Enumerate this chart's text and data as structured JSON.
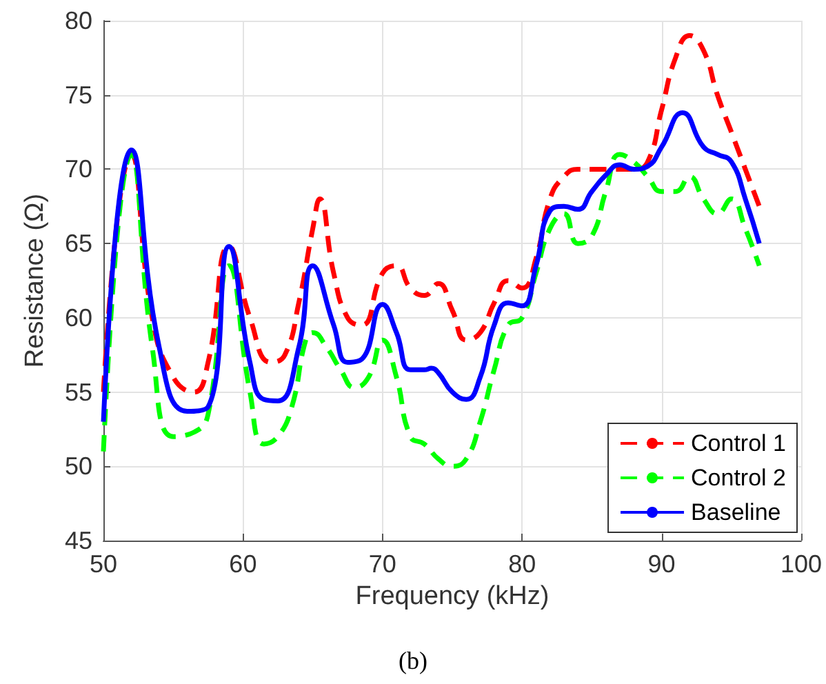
{
  "chart_data": {
    "type": "line",
    "xlabel": "Frequency (kHz)",
    "ylabel": "Resistance (Ω)",
    "annotations": [
      "(b)"
    ],
    "xlim": [
      50,
      100
    ],
    "xticks": [
      50,
      60,
      70,
      80,
      90,
      100
    ],
    "ylim": [
      45,
      80
    ],
    "yticks": [
      45,
      50,
      55,
      60,
      65,
      70,
      75,
      80
    ],
    "grid": true,
    "legend": "bottom right",
    "marker": "none",
    "series": [
      {
        "name": "Control 1",
        "color": "#ff0000",
        "line_style": "dashed",
        "x": [
          50,
          52,
          53.5,
          55,
          56.5,
          57.5,
          59,
          60.5,
          62,
          63,
          64,
          65,
          65.5,
          66.5,
          67.5,
          68.5,
          70,
          71,
          72,
          73,
          74,
          75,
          76,
          77,
          78,
          79,
          80,
          81,
          82,
          83,
          84,
          85,
          86,
          87,
          88,
          89,
          90,
          91,
          92,
          93,
          94,
          95,
          96,
          97
        ],
        "values": [
          55,
          71,
          60,
          56,
          55,
          57,
          64.8,
          60,
          57,
          57.5,
          61,
          66,
          68,
          63,
          60,
          59.5,
          63,
          63.5,
          62,
          61.5,
          62.3,
          60.5,
          58.5,
          59,
          61,
          62.5,
          62,
          64,
          68,
          69.5,
          70,
          70,
          70,
          70,
          70,
          70.5,
          74,
          77.5,
          79,
          78,
          75,
          72.5,
          70,
          67.5
        ]
      },
      {
        "name": "Control 2",
        "color": "#00ff00",
        "line_style": "dashed",
        "x": [
          50,
          52,
          53.5,
          55,
          56.5,
          57.5,
          59,
          60.5,
          61.5,
          62.5,
          63.5,
          64.5,
          65,
          66,
          67,
          68,
          69,
          70,
          71,
          72,
          73,
          74,
          75,
          76,
          77,
          78,
          79,
          80,
          81,
          82,
          83,
          84,
          85,
          86,
          87,
          88,
          89,
          90,
          91,
          92,
          93,
          94,
          95,
          96,
          97
        ],
        "values": [
          51,
          71,
          58,
          52,
          52.3,
          53.5,
          63.5,
          55,
          51.5,
          52,
          54,
          58.5,
          59,
          58,
          56.5,
          55.3,
          56,
          58.5,
          56,
          52,
          51.5,
          50.5,
          50,
          50.5,
          53,
          56.5,
          59.5,
          60,
          63,
          66,
          67,
          65,
          65.5,
          68.5,
          71,
          70.5,
          69.5,
          68.5,
          68.5,
          69.5,
          68,
          67,
          68,
          66,
          63.5
        ]
      },
      {
        "name": "Baseline",
        "color": "#0000ff",
        "line_style": "solid",
        "x": [
          50,
          52,
          54,
          56,
          57.5,
          59,
          60.5,
          61.5,
          62.5,
          64,
          65,
          66.5,
          67.5,
          68.5,
          70,
          71,
          72,
          73,
          73.5,
          74,
          75,
          76,
          77,
          78,
          79,
          80,
          81,
          82,
          83,
          84,
          85,
          86,
          87,
          88,
          89,
          90,
          91.5,
          93,
          94,
          95,
          96,
          97
        ],
        "values": [
          53,
          71.3,
          58,
          53.7,
          54,
          64.8,
          57,
          54.5,
          54.4,
          58,
          63.5,
          59.5,
          57,
          57.2,
          60.9,
          59,
          56.5,
          56.5,
          56.6,
          56.3,
          55,
          54.5,
          56,
          59.5,
          61,
          60.8,
          63.5,
          67.2,
          67.5,
          67.3,
          68.5,
          69.6,
          70.3,
          70,
          70.2,
          71.5,
          73.8,
          71.5,
          71,
          70.5,
          68,
          65
        ]
      }
    ]
  }
}
